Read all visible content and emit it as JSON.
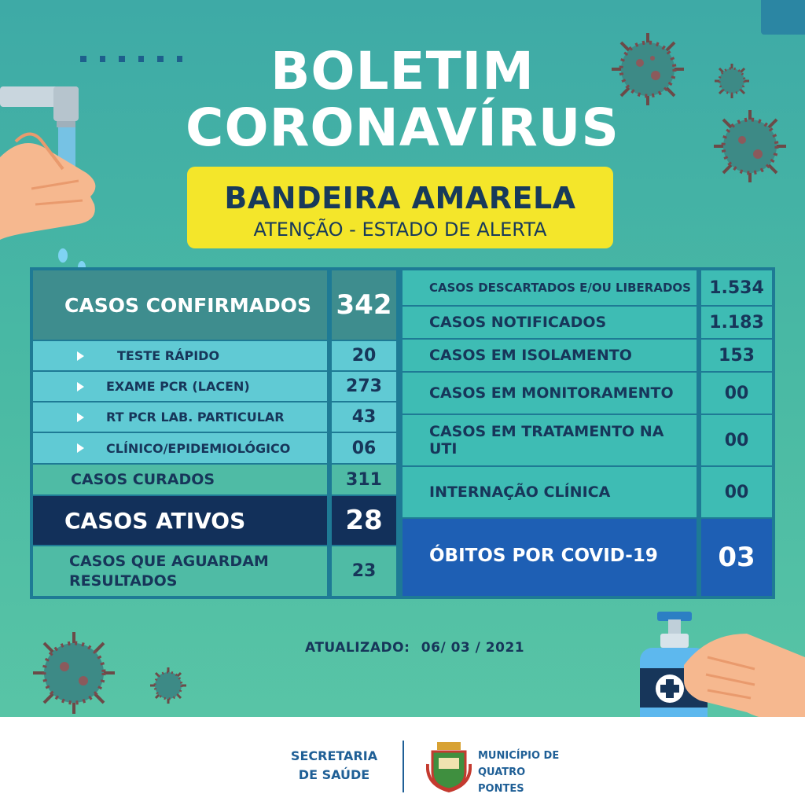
{
  "header": {
    "title_line1": "BOLETIM",
    "title_line2": "CORONAVÍRUS"
  },
  "banner": {
    "title": "BANDEIRA AMARELA",
    "subtitle": "ATENÇÃO - ESTADO DE ALERTA"
  },
  "left_table": {
    "confirmed": {
      "label": "CASOS CONFIRMADOS",
      "value": "342"
    },
    "sub_rows": [
      {
        "label": "TESTE RÁPIDO",
        "value": "20"
      },
      {
        "label": "EXAME PCR (LACEN)",
        "value": "273"
      },
      {
        "label": "RT PCR LAB. PARTICULAR",
        "value": "43"
      },
      {
        "label": "CLÍNICO/EPIDEMIOLÓGICO",
        "value": "06"
      }
    ],
    "cured": {
      "label": "CASOS CURADOS",
      "value": "311"
    },
    "active": {
      "label": "CASOS ATIVOS",
      "value": "28"
    },
    "awaiting": {
      "label_line1": "CASOS QUE AGUARDAM",
      "label_line2": "RESULTADOS",
      "value": "23"
    }
  },
  "right_table": {
    "rows": [
      {
        "label": "CASOS DESCARTADOS E/OU LIBERADOS",
        "value": "1.534"
      },
      {
        "label": "CASOS NOTIFICADOS",
        "value": "1.183"
      },
      {
        "label": "CASOS EM ISOLAMENTO",
        "value": "153"
      },
      {
        "label": "CASOS EM MONITORAMENTO",
        "value": "00"
      },
      {
        "label": "CASOS EM TRATAMENTO NA UTI",
        "value": "00"
      },
      {
        "label": "INTERNAÇÃO CLÍNICA",
        "value": "00"
      }
    ],
    "deaths": {
      "label": "ÓBITOS POR COVID-19",
      "value": "03"
    }
  },
  "updated": {
    "label": "ATUALIZADO:",
    "date": "06/ 03 / 2021"
  },
  "footer": {
    "secretaria_line1": "SECRETARIA",
    "secretaria_line2": "DE SAÚDE",
    "municipio_line1": "MUNICÍPIO DE",
    "municipio_line2": "QUATRO PONTES"
  },
  "colors": {
    "background": "#46b3a5",
    "banner_yellow": "#f4e62a",
    "navy": "#17365a",
    "table_border": "#1e7a95",
    "active_row": "#12305a",
    "deaths_row": "#1e5fb4"
  },
  "icons": [
    "virus-icon",
    "faucet-icon",
    "washing-hands-icon",
    "sanitizer-bottle-icon",
    "coat-of-arms-icon"
  ]
}
